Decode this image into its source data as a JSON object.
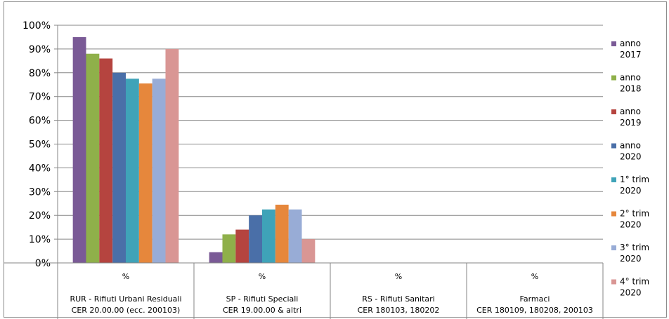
{
  "chart_data": {
    "type": "bar",
    "title": "",
    "ylim": [
      0,
      100
    ],
    "ytick_labels": [
      "0%",
      "10%",
      "20%",
      "30%",
      "40%",
      "50%",
      "60%",
      "70%",
      "80%",
      "90%",
      "100%"
    ],
    "grid": true,
    "legend_position": "right",
    "categories": [
      {
        "top": "%",
        "line1": "RUR - Rifiuti Urbani Residuali",
        "line2": "CER 20.00.00 (ecc. 200103)"
      },
      {
        "top": "%",
        "line1": "SP - Rifiuti Speciali",
        "line2": "CER 19.00.00 & altri"
      },
      {
        "top": "%",
        "line1": "RS - Rifiuti Sanitari",
        "line2": "CER 180103, 180202"
      },
      {
        "top": "%",
        "line1": "Farmaci",
        "line2": "CER 180109, 180208, 200103"
      }
    ],
    "series": [
      {
        "name1": "anno",
        "name2": "2017",
        "color": "#7a5a96",
        "values": [
          95,
          4.5,
          0,
          0
        ]
      },
      {
        "name1": "anno",
        "name2": "2018",
        "color": "#8fb04a",
        "values": [
          88,
          12,
          0,
          0
        ]
      },
      {
        "name1": "anno",
        "name2": "2019",
        "color": "#b5443f",
        "values": [
          86,
          14,
          0,
          0
        ]
      },
      {
        "name1": "anno",
        "name2": "2020",
        "color": "#4a6fa8",
        "values": [
          80,
          20,
          0,
          0
        ]
      },
      {
        "name1": "1° trim",
        "name2": "2020",
        "color": "#3fa3b8",
        "values": [
          77.5,
          22.5,
          0,
          0
        ]
      },
      {
        "name1": "2° trim",
        "name2": "2020",
        "color": "#e6873c",
        "values": [
          75.5,
          24.5,
          0,
          0
        ]
      },
      {
        "name1": "3° trim",
        "name2": "2020",
        "color": "#98acd6",
        "values": [
          77.5,
          22.5,
          0,
          0
        ]
      },
      {
        "name1": "4° trim",
        "name2": "2020",
        "color": "#d99694",
        "values": [
          90,
          10,
          0,
          0
        ]
      }
    ]
  }
}
